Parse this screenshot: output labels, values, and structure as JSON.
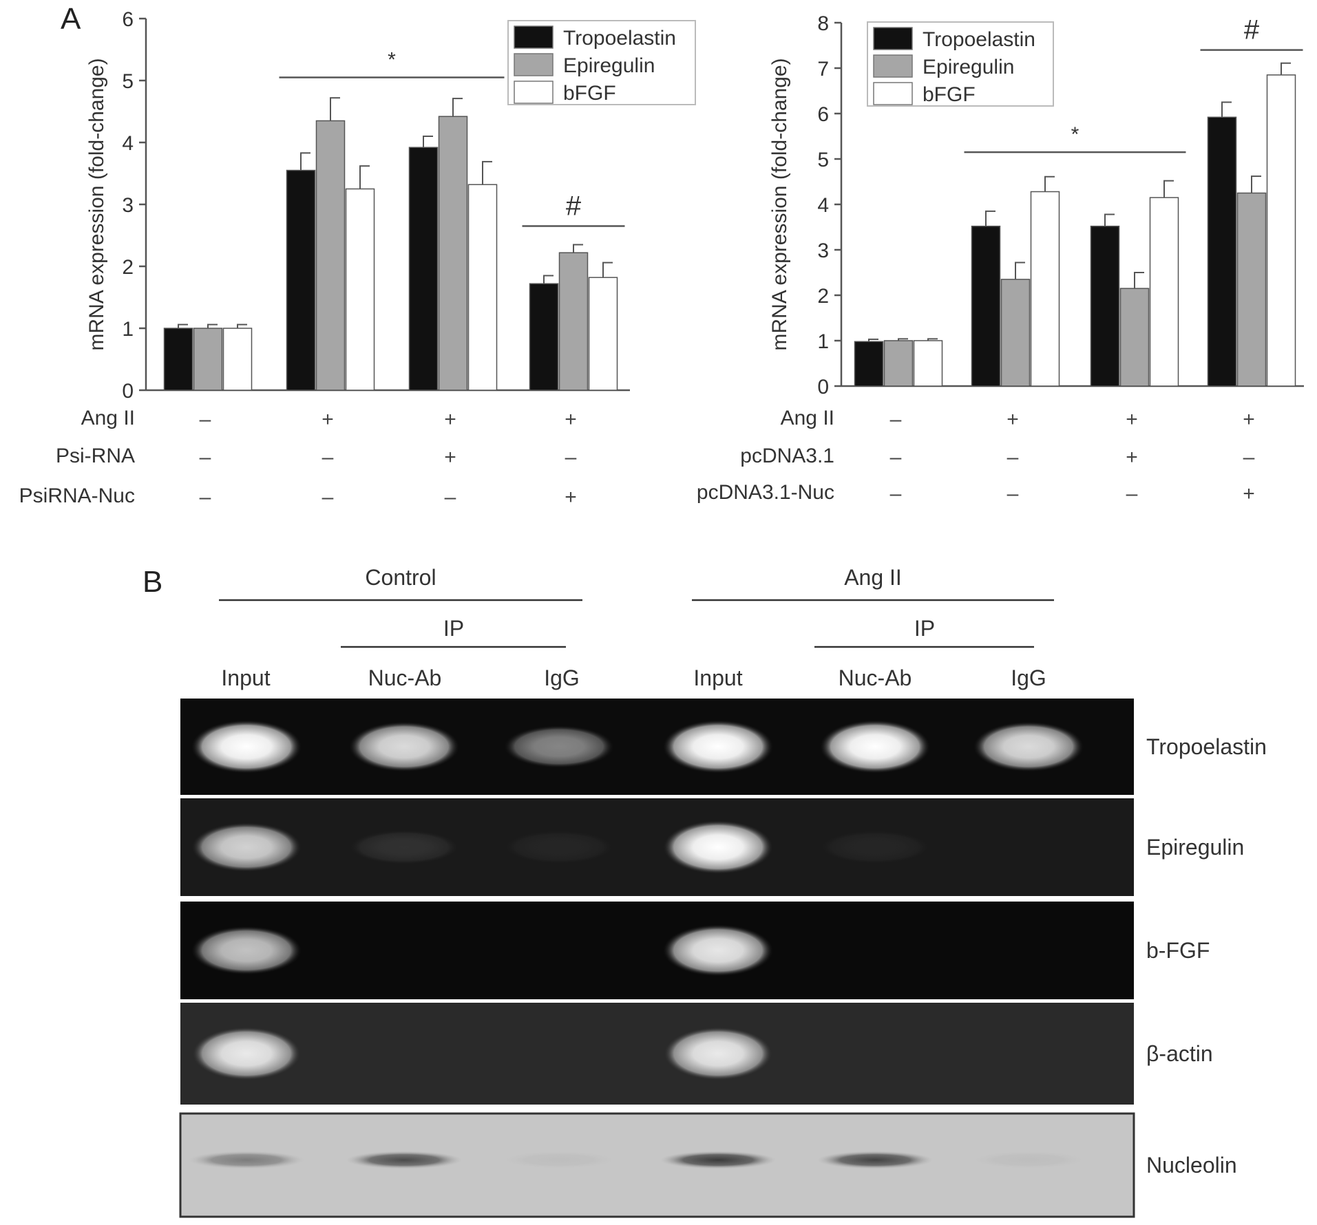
{
  "panel_a": {
    "label": "A",
    "legend": [
      {
        "name": "Tropoelastin",
        "color": "#111111"
      },
      {
        "name": "Epiregulin",
        "color": "#a6a6a6"
      },
      {
        "name": "bFGF",
        "color": "#ffffff"
      }
    ],
    "treatment_signs": {
      "plus": "+",
      "minus": "–"
    }
  },
  "panel_b": {
    "label": "B",
    "groups": [
      "Control",
      "Ang II"
    ],
    "ip_label": "IP",
    "lanes": [
      "Input",
      "Nuc-Ab",
      "IgG",
      "Input",
      "Nuc-Ab",
      "IgG"
    ],
    "rows": [
      "Tropoelastin",
      "Epiregulin",
      "b-FGF",
      "β-actin",
      "Nucleolin"
    ],
    "band_intensity": [
      [
        1.0,
        0.85,
        0.5,
        1.0,
        1.0,
        0.85
      ],
      [
        0.8,
        0.1,
        0.05,
        1.0,
        0.05,
        0.0
      ],
      [
        0.75,
        0.0,
        0.0,
        0.9,
        0.0,
        0.0
      ],
      [
        0.9,
        0.0,
        0.0,
        0.9,
        0.0,
        0.0
      ],
      [
        0.45,
        0.75,
        0.05,
        0.85,
        0.8,
        0.05
      ]
    ]
  },
  "chart_data": [
    {
      "type": "bar",
      "ylabel": "mRNA expression (fold-change)",
      "ylim": [
        0,
        6
      ],
      "yticks": [
        0,
        1,
        2,
        3,
        4,
        5,
        6
      ],
      "legend_position": "top-right",
      "grid": false,
      "series": [
        {
          "name": "Tropoelastin",
          "values": [
            1.0,
            3.55,
            3.92,
            1.72
          ],
          "errors": [
            0.06,
            0.28,
            0.18,
            0.13
          ]
        },
        {
          "name": "Epiregulin",
          "values": [
            1.0,
            4.35,
            4.42,
            2.22
          ],
          "errors": [
            0.06,
            0.37,
            0.29,
            0.13
          ]
        },
        {
          "name": "bFGF",
          "values": [
            1.0,
            3.25,
            3.32,
            1.82
          ],
          "errors": [
            0.06,
            0.37,
            0.37,
            0.24
          ]
        }
      ],
      "treatments": [
        {
          "label": "Ang II",
          "signs": [
            "–",
            "+",
            "+",
            "+"
          ]
        },
        {
          "label": "Psi-RNA",
          "signs": [
            "–",
            "–",
            "+",
            "–"
          ]
        },
        {
          "label": "PsiRNA-Nuc",
          "signs": [
            "–",
            "–",
            "–",
            "+"
          ]
        }
      ],
      "annotations": [
        {
          "text": "*",
          "from_group": 1,
          "to_group": 2,
          "y": 5.05
        },
        {
          "text": "#",
          "from_group": 3,
          "to_group": 3,
          "y": 2.65
        }
      ]
    },
    {
      "type": "bar",
      "ylabel": "mRNA expression (fold-change)",
      "ylim": [
        0,
        8
      ],
      "yticks": [
        0,
        1,
        2,
        3,
        4,
        5,
        6,
        7,
        8
      ],
      "legend_position": "top-left",
      "grid": false,
      "series": [
        {
          "name": "Tropoelastin",
          "values": [
            0.98,
            3.52,
            3.52,
            5.92
          ],
          "errors": [
            0.05,
            0.33,
            0.26,
            0.33
          ]
        },
        {
          "name": "Epiregulin",
          "values": [
            1.0,
            2.35,
            2.15,
            4.25
          ],
          "errors": [
            0.04,
            0.37,
            0.35,
            0.37
          ]
        },
        {
          "name": "bFGF",
          "values": [
            1.0,
            4.28,
            4.15,
            6.85
          ],
          "errors": [
            0.04,
            0.33,
            0.37,
            0.26
          ]
        }
      ],
      "treatments": [
        {
          "label": "Ang II",
          "signs": [
            "–",
            "+",
            "+",
            "+"
          ]
        },
        {
          "label": "pcDNA3.1",
          "signs": [
            "–",
            "–",
            "+",
            "–"
          ]
        },
        {
          "label": "pcDNA3.1-Nuc",
          "signs": [
            "–",
            "–",
            "–",
            "+"
          ]
        }
      ],
      "annotations": [
        {
          "text": "*",
          "from_group": 1,
          "to_group": 2,
          "y": 5.15
        },
        {
          "text": "#",
          "from_group": 3,
          "to_group": 3,
          "y": 7.4
        }
      ]
    }
  ]
}
